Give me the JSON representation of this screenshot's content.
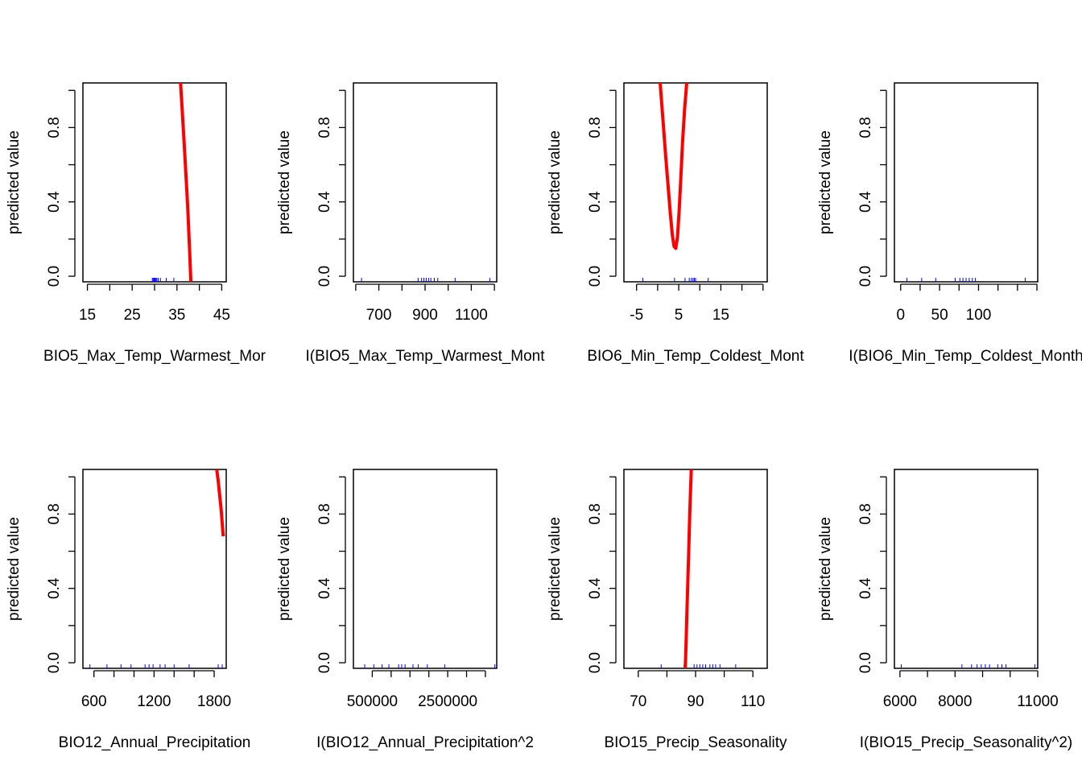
{
  "chart_data": [
    {
      "type": "line",
      "title": "",
      "xlabel": "BIO5_Max_Temp_Warmest_Mor",
      "ylabel": "predicted value",
      "xlim": [
        14,
        46
      ],
      "ylim": [
        -0.03,
        1.04
      ],
      "xticks": [
        15,
        20,
        25,
        30,
        35,
        40,
        45
      ],
      "xticklabels": [
        "15",
        "",
        "25",
        "",
        "35",
        "",
        "45"
      ],
      "yticks": [
        0.0,
        0.2,
        0.4,
        0.6,
        0.8,
        1.0
      ],
      "yticklabels": [
        "0.0",
        "",
        "0.4",
        "",
        "0.8",
        ""
      ],
      "series": [
        {
          "color": "#ff0000",
          "x": [
            35.8,
            36.2,
            36.6,
            37.0,
            37.4,
            37.8,
            38.1
          ],
          "y": [
            1.04,
            0.88,
            0.72,
            0.55,
            0.37,
            0.15,
            -0.03
          ]
        }
      ],
      "rug": [
        29.5,
        29.7,
        29.9,
        30.1,
        30.3,
        30.5,
        30.8,
        31.3,
        32.6,
        34.3
      ]
    },
    {
      "type": "line",
      "title": "",
      "xlabel": "I(BIO5_Max_Temp_Warmest_Mont",
      "ylabel": "predicted value",
      "xlim": [
        590,
        1210
      ],
      "ylim": [
        -0.03,
        1.04
      ],
      "xticks": [
        600,
        700,
        800,
        900,
        1000,
        1100,
        1200
      ],
      "xticklabels": [
        "",
        "700",
        "",
        "900",
        "",
        "1100",
        ""
      ],
      "yticks": [
        0.0,
        0.2,
        0.4,
        0.6,
        0.8,
        1.0
      ],
      "yticklabels": [
        "0.0",
        "",
        "0.4",
        "",
        "0.8",
        ""
      ],
      "series": [],
      "rug": [
        625,
        870,
        885,
        895,
        905,
        915,
        925,
        940,
        955,
        1030,
        1180
      ]
    },
    {
      "type": "line",
      "title": "",
      "xlabel": "BIO6_Min_Temp_Coldest_Mont",
      "ylabel": "predicted value",
      "xlim": [
        -8,
        26
      ],
      "ylim": [
        -0.03,
        1.04
      ],
      "xticks": [
        -5,
        0,
        5,
        10,
        15,
        20,
        25
      ],
      "xticklabels": [
        "-5",
        "",
        "5",
        "",
        "15",
        "",
        ""
      ],
      "yticks": [
        0.0,
        0.2,
        0.4,
        0.6,
        0.8,
        1.0
      ],
      "yticklabels": [
        "0.0",
        "",
        "0.4",
        "",
        "0.8",
        ""
      ],
      "series": [
        {
          "color": "#ff0000",
          "x": [
            0.6,
            1.3,
            1.9,
            2.5,
            3.0,
            3.5,
            3.9,
            4.3,
            4.7,
            5.1,
            5.5,
            5.9,
            6.4,
            6.9
          ],
          "y": [
            1.04,
            0.83,
            0.65,
            0.48,
            0.34,
            0.22,
            0.16,
            0.15,
            0.21,
            0.35,
            0.53,
            0.72,
            0.9,
            1.04
          ]
        }
      ],
      "rug": [
        -3.5,
        4.0,
        6.5,
        7.5,
        8.0,
        8.4,
        8.7,
        9.0,
        12.0
      ]
    },
    {
      "type": "line",
      "title": "",
      "xlabel": "I(BIO6_Min_Temp_Coldest_Month",
      "ylabel": "predicted value",
      "xlim": [
        -8,
        176
      ],
      "ylim": [
        -0.03,
        1.04
      ],
      "xticks": [
        0,
        25,
        50,
        75,
        100,
        125,
        150,
        175
      ],
      "xticklabels": [
        "0",
        "",
        "50",
        "",
        "100",
        "",
        "",
        ""
      ],
      "yticks": [
        0.0,
        0.2,
        0.4,
        0.6,
        0.8,
        1.0
      ],
      "yticklabels": [
        "0.0",
        "",
        "0.4",
        "",
        "0.8",
        ""
      ],
      "series": [],
      "rug": [
        8,
        27,
        45,
        70,
        76,
        80,
        84,
        88,
        92,
        96,
        160
      ]
    },
    {
      "type": "line",
      "title": "",
      "xlabel": "BIO12_Annual_Precipitation",
      "ylabel": "predicted value",
      "xlim": [
        490,
        1920
      ],
      "ylim": [
        -0.03,
        1.04
      ],
      "xticks": [
        600,
        800,
        1000,
        1200,
        1400,
        1600,
        1800
      ],
      "xticklabels": [
        "600",
        "",
        "",
        "1200",
        "",
        "",
        "1800"
      ],
      "yticks": [
        0.0,
        0.2,
        0.4,
        0.6,
        0.8,
        1.0
      ],
      "yticklabels": [
        "0.0",
        "",
        "0.4",
        "",
        "0.8",
        ""
      ],
      "series": [
        {
          "color": "#ff0000",
          "x": [
            1825,
            1840,
            1855,
            1870,
            1880,
            1890
          ],
          "y": [
            1.04,
            0.98,
            0.9,
            0.82,
            0.75,
            0.68
          ]
        }
      ],
      "rug": [
        560,
        730,
        870,
        970,
        1110,
        1150,
        1190,
        1260,
        1310,
        1400,
        1550,
        1840,
        1880
      ]
    },
    {
      "type": "line",
      "title": "",
      "xlabel": "I(BIO12_Annual_Precipitation^2",
      "ylabel": "predicted value",
      "xlim": [
        0,
        3800000
      ],
      "ylim": [
        -0.03,
        1.04
      ],
      "xticks": [
        500000,
        1000000,
        1500000,
        2000000,
        2500000,
        3000000,
        3500000
      ],
      "xticklabels": [
        "500000",
        "",
        "",
        "",
        "2500000",
        "",
        ""
      ],
      "yticks": [
        0.0,
        0.2,
        0.4,
        0.6,
        0.8,
        1.0
      ],
      "yticklabels": [
        "0.0",
        "",
        "0.4",
        "",
        "0.8",
        ""
      ],
      "series": [],
      "rug": [
        300000,
        540000,
        760000,
        940000,
        1200000,
        1280000,
        1370000,
        1580000,
        1720000,
        1960000,
        2420000,
        3750000
      ]
    },
    {
      "type": "line",
      "title": "",
      "xlabel": "BIO15_Precip_Seasonality",
      "ylabel": "predicted value",
      "xlim": [
        65,
        115
      ],
      "ylim": [
        -0.03,
        1.04
      ],
      "xticks": [
        70,
        80,
        90,
        100,
        110
      ],
      "xticklabels": [
        "70",
        "",
        "90",
        "",
        "110"
      ],
      "yticks": [
        0.0,
        0.2,
        0.4,
        0.6,
        0.8,
        1.0
      ],
      "yticklabels": [
        "0.0",
        "",
        "0.4",
        "",
        "0.8",
        ""
      ],
      "series": [
        {
          "color": "#ff0000",
          "x": [
            86.4,
            86.7,
            87.0,
            87.3,
            87.6,
            87.9,
            88.2,
            88.5
          ],
          "y": [
            -0.03,
            0.12,
            0.28,
            0.44,
            0.6,
            0.76,
            0.91,
            1.04
          ]
        }
      ],
      "rug": [
        78,
        86,
        89.5,
        90.5,
        91.5,
        92.5,
        93.5,
        95,
        96,
        97,
        98.5,
        104
      ]
    },
    {
      "type": "line",
      "title": "",
      "xlabel": "I(BIO15_Precip_Seasonality^2)",
      "ylabel": "predicted value",
      "xlim": [
        5800,
        11000
      ],
      "ylim": [
        -0.03,
        1.04
      ],
      "xticks": [
        6000,
        7000,
        8000,
        9000,
        10000,
        11000
      ],
      "xticklabels": [
        "6000",
        "",
        "8000",
        "",
        "",
        "11000"
      ],
      "yticks": [
        0.0,
        0.2,
        0.4,
        0.6,
        0.8,
        1.0
      ],
      "yticklabels": [
        "0.0",
        "",
        "0.4",
        "",
        "0.8",
        ""
      ],
      "series": [],
      "rug": [
        6050,
        8250,
        8600,
        8800,
        8950,
        9100,
        9250,
        9550,
        9700,
        9850,
        10900
      ]
    }
  ]
}
